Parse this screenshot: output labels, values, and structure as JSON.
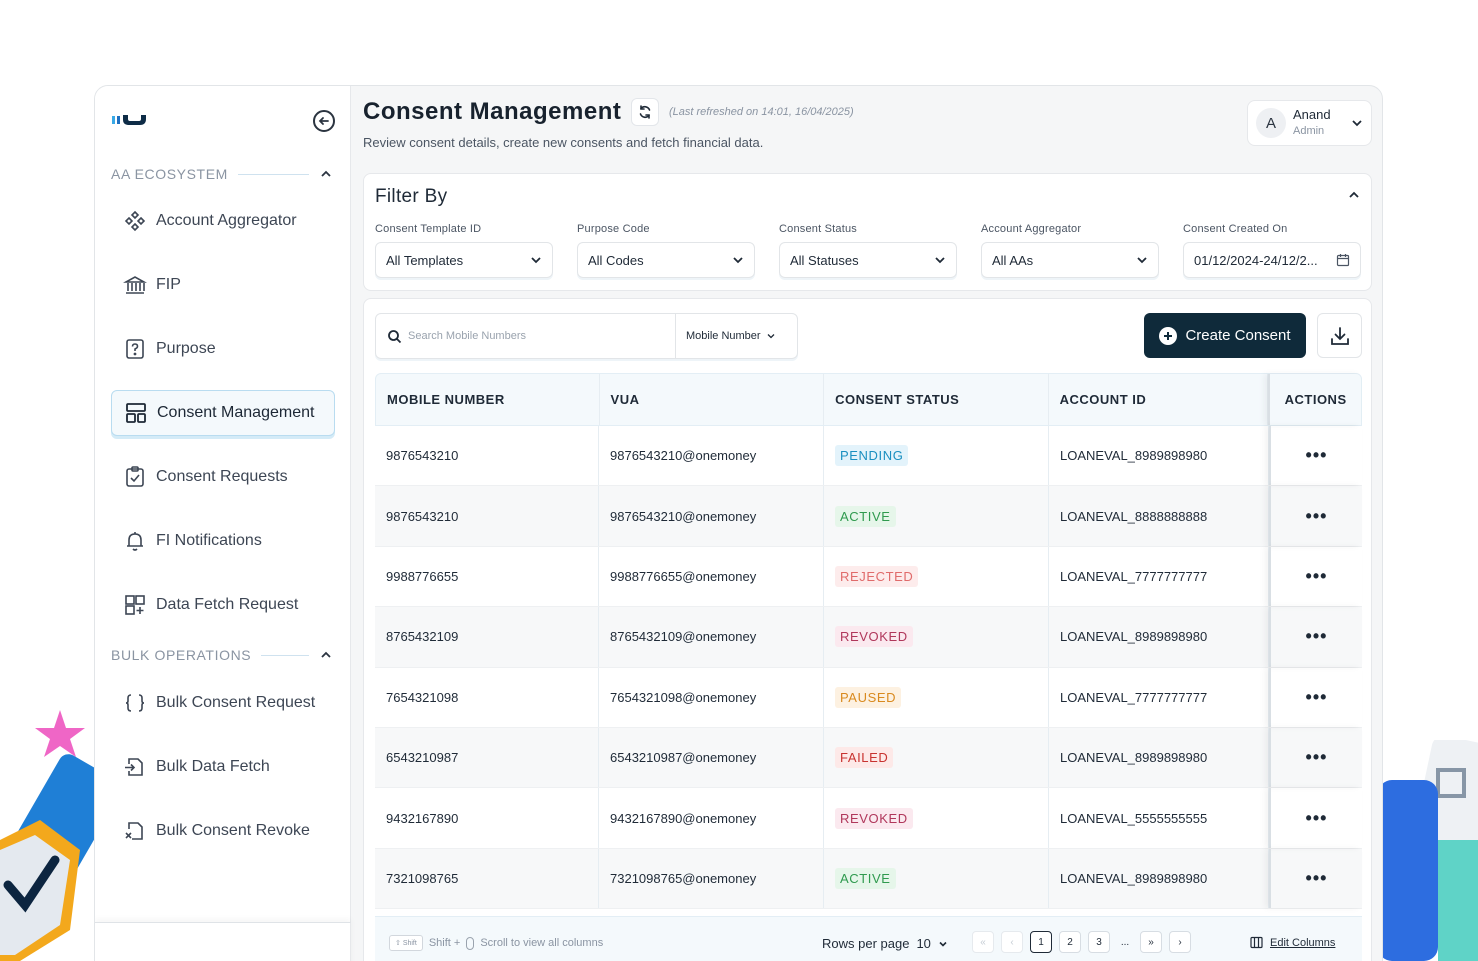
{
  "sidebar": {
    "sections": [
      {
        "title": "AA ECOSYSTEM"
      },
      {
        "title": "BULK OPERATIONS"
      }
    ],
    "items": [
      {
        "label": "Account Aggregator",
        "icon": "network-icon"
      },
      {
        "label": "FIP",
        "icon": "bank-icon"
      },
      {
        "label": "Purpose",
        "icon": "question-doc-icon"
      },
      {
        "label": "Consent Management",
        "icon": "layout-icon",
        "active": true
      },
      {
        "label": "Consent Requests",
        "icon": "clipboard-check-icon"
      },
      {
        "label": "FI Notifications",
        "icon": "bell-icon"
      },
      {
        "label": "Data Fetch Request",
        "icon": "grid-plus-icon"
      },
      {
        "label": "Bulk Consent Request",
        "icon": "braces-icon"
      },
      {
        "label": "Bulk Data Fetch",
        "icon": "file-import-icon"
      },
      {
        "label": "Bulk Consent Revoke",
        "icon": "file-x-icon"
      }
    ]
  },
  "header": {
    "title": "Consent Management",
    "last_refreshed": "(Last refreshed on 14:01, 16/04/2025)",
    "subtitle": "Review consent details, create new consents and fetch financial data."
  },
  "user": {
    "initial": "A",
    "name": "Anand",
    "role": "Admin"
  },
  "filters": {
    "title": "Filter By",
    "fields": [
      {
        "label": "Consent Template ID",
        "value": "All Templates"
      },
      {
        "label": "Purpose Code",
        "value": "All Codes"
      },
      {
        "label": "Consent Status",
        "value": "All Statuses"
      },
      {
        "label": "Account Aggregator",
        "value": "All AAs"
      },
      {
        "label": "Consent Created On",
        "value": "01/12/2024-24/12/2..."
      }
    ]
  },
  "toolbar": {
    "search_placeholder": "Search Mobile Numbers",
    "search_type": "Mobile Number",
    "create_label": "Create Consent"
  },
  "table": {
    "columns": [
      "MOBILE NUMBER",
      "VUA",
      "CONSENT STATUS",
      "ACCOUNT ID",
      "ACTIONS"
    ],
    "rows": [
      {
        "mobile": "9876543210",
        "vua": "9876543210@onemoney",
        "status": "PENDING",
        "account": "LOANEVAL_8989898980"
      },
      {
        "mobile": "9876543210",
        "vua": "9876543210@onemoney",
        "status": "ACTIVE",
        "account": "LOANEVAL_8888888888"
      },
      {
        "mobile": "9988776655",
        "vua": "9988776655@onemoney",
        "status": "REJECTED",
        "account": "LOANEVAL_7777777777"
      },
      {
        "mobile": "8765432109",
        "vua": "8765432109@onemoney",
        "status": "REVOKED",
        "account": "LOANEVAL_8989898980"
      },
      {
        "mobile": "7654321098",
        "vua": "7654321098@onemoney",
        "status": "PAUSED",
        "account": "LOANEVAL_7777777777"
      },
      {
        "mobile": "6543210987",
        "vua": "6543210987@onemoney",
        "status": "FAILED",
        "account": "LOANEVAL_8989898980"
      },
      {
        "mobile": "9432167890",
        "vua": "9432167890@onemoney",
        "status": "REVOKED",
        "account": "LOANEVAL_5555555555"
      },
      {
        "mobile": "7321098765",
        "vua": "7321098765@onemoney",
        "status": "ACTIVE",
        "account": "LOANEVAL_8989898980"
      }
    ],
    "actions_label": "•••"
  },
  "status_colors": {
    "PENDING": {
      "fg": "#1a8fc0",
      "bg": "#e3f3fb"
    },
    "ACTIVE": {
      "fg": "#2f9a4e",
      "bg": "#e6f6ea"
    },
    "REJECTED": {
      "fg": "#e06b6b",
      "bg": "#fdecec"
    },
    "REVOKED": {
      "fg": "#b0375b",
      "bg": "#fbe9ef"
    },
    "PAUSED": {
      "fg": "#d98a1f",
      "bg": "#fdf1e1"
    },
    "FAILED": {
      "fg": "#c8322f",
      "bg": "#fde9e8"
    }
  },
  "footer": {
    "key_shift": "Shift",
    "hint_prefix": "Shift +",
    "hint_text": "Scroll to view all columns",
    "rows_per_page_label": "Rows per page",
    "rows_per_page_value": "10",
    "pages": [
      "1",
      "2",
      "3"
    ],
    "ellipsis": "...",
    "current_page": "1",
    "edit_columns": "Edit Columns"
  }
}
